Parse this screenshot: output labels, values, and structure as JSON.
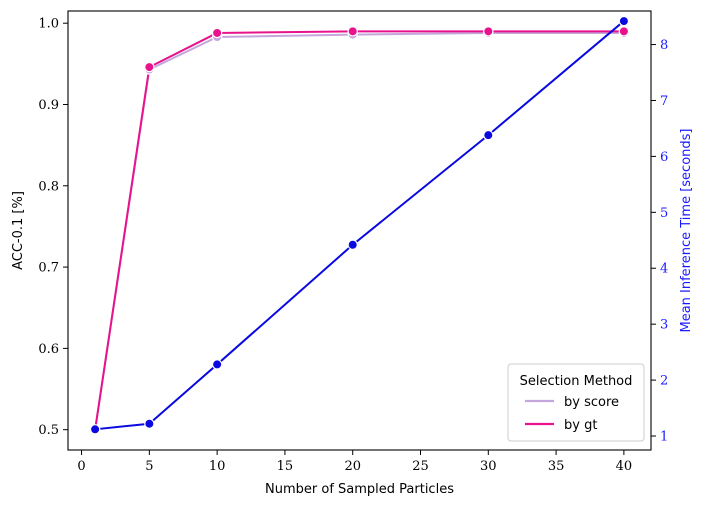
{
  "chart_data": {
    "type": "line",
    "title": "",
    "xlabel": "Number of Sampled Particles",
    "ylabel": "ACC-0.1 [%]",
    "ylabel_right": "Mean Inference Time [seconds]",
    "xlim": [
      -1,
      42
    ],
    "ylim": [
      0.475,
      1.015
    ],
    "ylim_right": [
      0.75,
      8.6
    ],
    "x_ticks": [
      0,
      5,
      10,
      15,
      20,
      25,
      30,
      35,
      40
    ],
    "y_ticks": [
      0.5,
      0.6,
      0.7,
      0.8,
      0.9,
      1.0
    ],
    "y_tick_labels": [
      "0.5",
      "0.6",
      "0.7",
      "0.8",
      "0.9",
      "1.0"
    ],
    "y_right_ticks": [
      1,
      2,
      3,
      4,
      5,
      6,
      7,
      8
    ],
    "grid": false,
    "legend": {
      "title": "Selection Method",
      "placement": "lower-right",
      "entries": [
        {
          "label": "by score",
          "color": "#c4a6dc"
        },
        {
          "label": "by gt",
          "color": "#e8128c"
        }
      ]
    },
    "series": [
      {
        "name": "by score",
        "axis": "left",
        "color": "#c4a6dc",
        "x": [
          1,
          5,
          10,
          20,
          30,
          40
        ],
        "values": [
          0.5,
          0.943,
          0.983,
          0.986,
          0.988,
          0.988
        ]
      },
      {
        "name": "by gt",
        "axis": "left",
        "color": "#e8128c",
        "x": [
          1,
          5,
          10,
          20,
          30,
          40
        ],
        "values": [
          0.5,
          0.946,
          0.988,
          0.99,
          0.99,
          0.99
        ]
      },
      {
        "name": "",
        "axis": "right",
        "color": "#0a0ae0",
        "x": [
          1,
          5,
          10,
          20,
          30,
          40
        ],
        "values": [
          1.12,
          1.22,
          2.28,
          4.42,
          6.38,
          8.42
        ]
      }
    ]
  }
}
